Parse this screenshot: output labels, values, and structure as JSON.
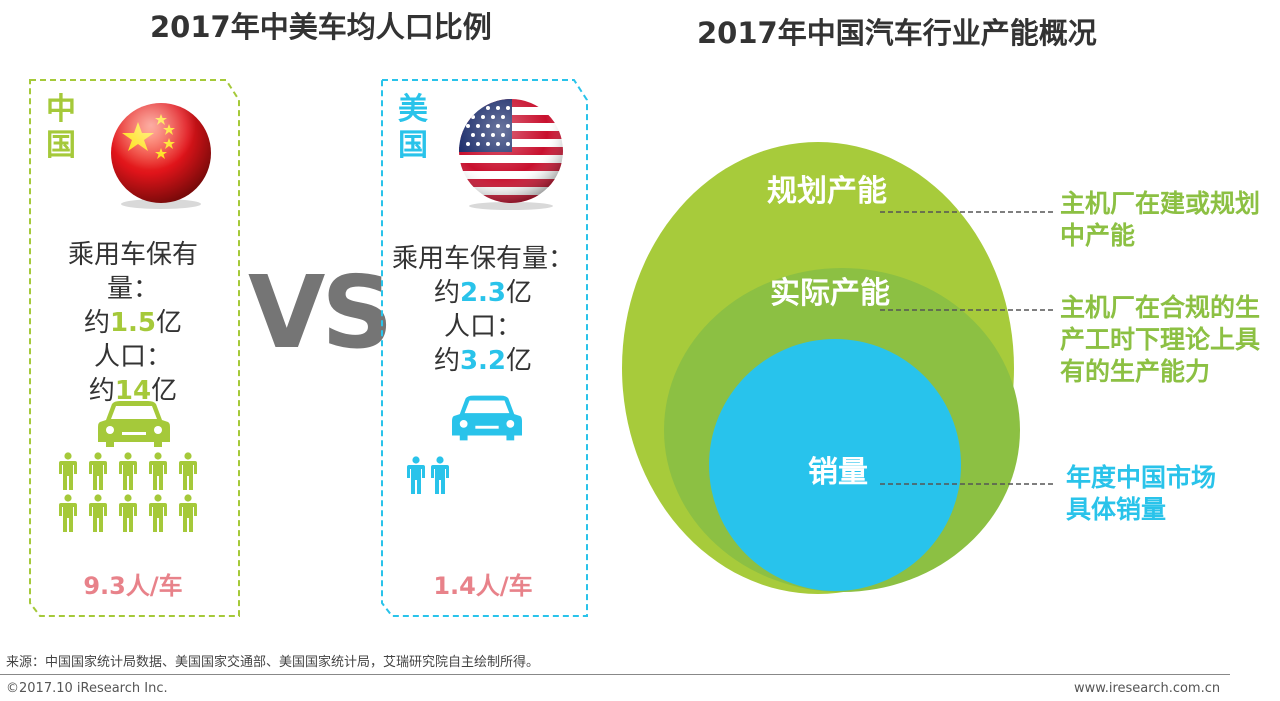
{
  "left_title": "2017年中美车均人口比例",
  "right_title": "2017年中国汽车行业产能概况",
  "vs": "VS",
  "china": {
    "name_line1": "中",
    "name_line2": "国",
    "stat_line1": "乘用车保有",
    "stat_line2": "量：",
    "stat_line3_prefix": "约",
    "stat_line3_num": "1.5",
    "stat_line3_suffix": "亿",
    "stat_line4": "人口：",
    "stat_line5_prefix": "约",
    "stat_line5_num": "14",
    "stat_line5_suffix": "亿",
    "ratio": "9.3人/车",
    "person_count": 10
  },
  "usa": {
    "name_line1": "美",
    "name_line2": "国",
    "stat_line1": "乘用车保有量：",
    "stat_line2_prefix": "约",
    "stat_line2_num": "2.3",
    "stat_line2_suffix": "亿",
    "stat_line3": "人口：",
    "stat_line4_prefix": "约",
    "stat_line4_num": "3.2",
    "stat_line4_suffix": "亿",
    "ratio": "1.4人/车",
    "person_count": 2
  },
  "capacity": {
    "outer_label": "规划产能",
    "middle_label": "实际产能",
    "inner_label": "销量",
    "outer_note": "主机厂在建或规划中产能",
    "middle_note": "主机厂在合规的生产工时下理论上具有的生产能力",
    "inner_note": "年度中国市场具体销量"
  },
  "footer": {
    "source": "来源：中国国家统计局数据、美国国家交通部、美国国家统计局，艾瑞研究院自主绘制所得。",
    "copyright": "©2017.10 iResearch Inc.",
    "url": "www.iresearch.com.cn"
  },
  "colors": {
    "green": "#a5c93a",
    "blue": "#29c3ea",
    "outer_circle": "#a7cb3b",
    "middle_circle": "#8cc043",
    "inner_circle": "#28c3ec",
    "ratio_pink": "#e8828a",
    "vs_gray": "#757575"
  }
}
